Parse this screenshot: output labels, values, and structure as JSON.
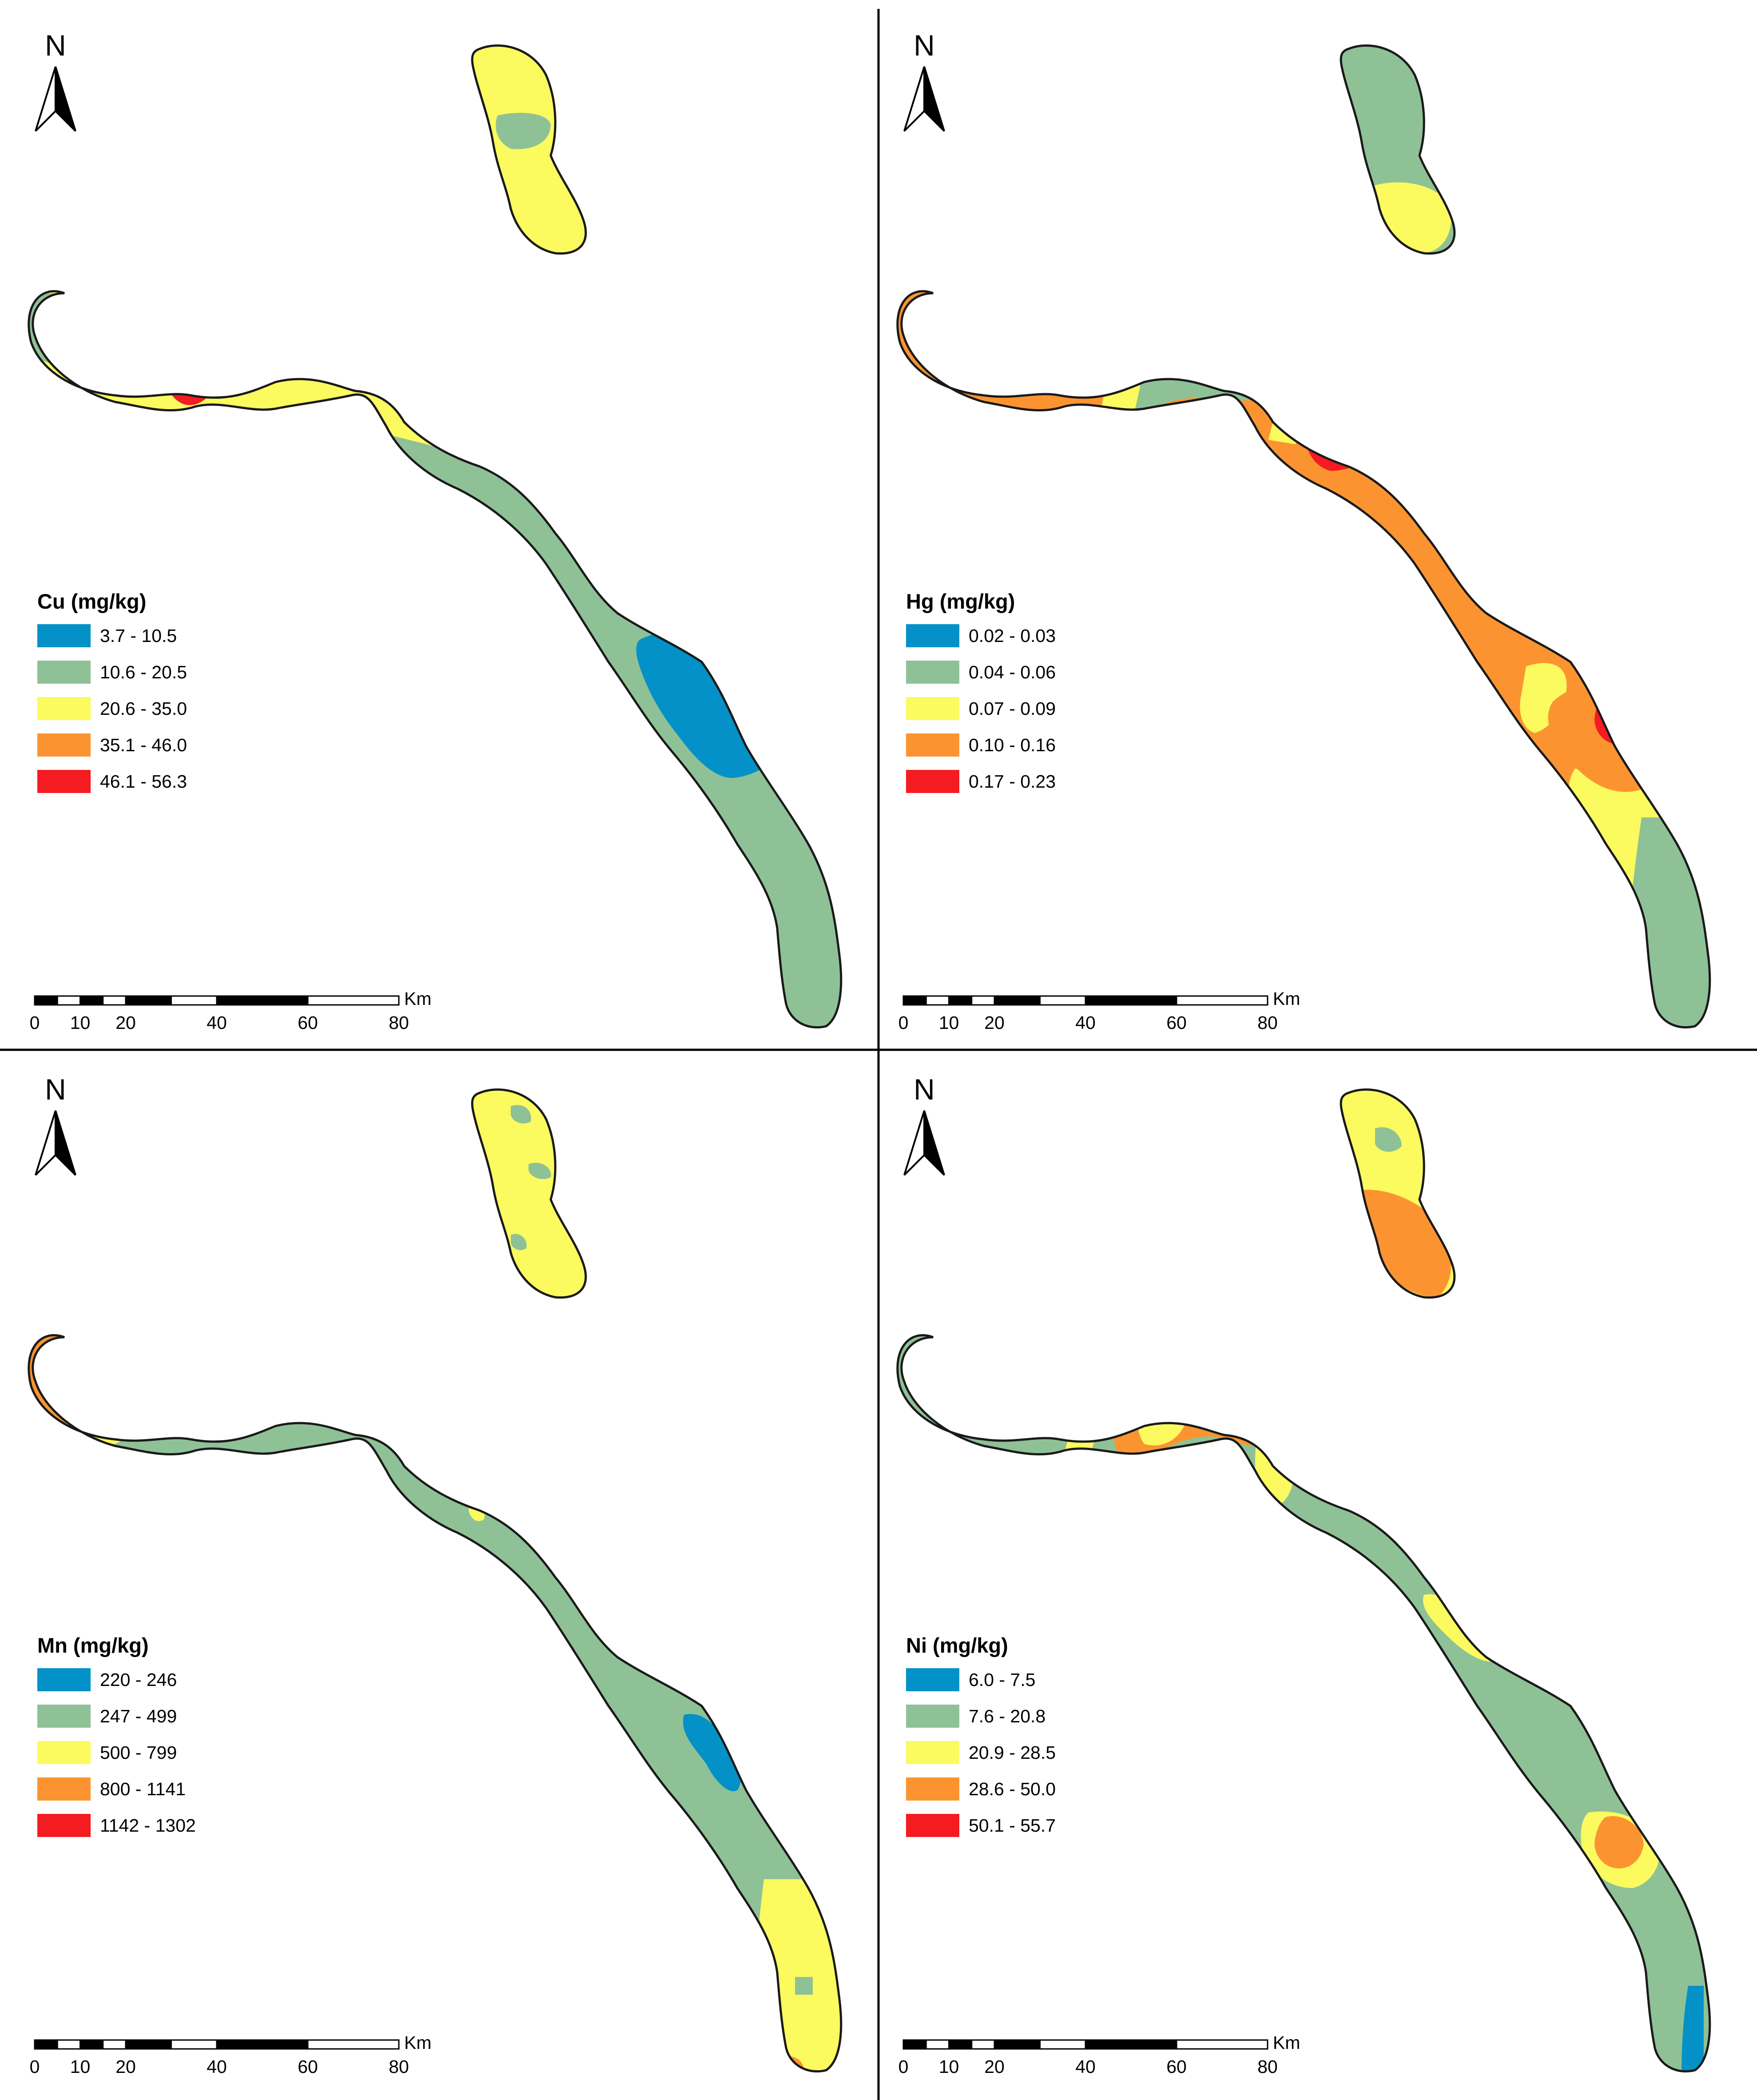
{
  "colors": {
    "blue": "#0391c7",
    "green": "#8fc197",
    "yellow": "#fbfa5f",
    "orange": "#fb9430",
    "red": "#f41c21",
    "outline": "#1a1a1a"
  },
  "north_label": "N",
  "scale_bar": {
    "unit": "Km",
    "ticks": [
      "0",
      "10",
      "20",
      "40",
      "60",
      "80"
    ]
  },
  "panels": [
    {
      "element": "Cu",
      "legend_title": "Cu (mg/kg)",
      "classes": [
        {
          "range": "3.7 - 10.5",
          "color": "blue"
        },
        {
          "range": "10.6 - 20.5",
          "color": "green"
        },
        {
          "range": "20.6 - 35.0",
          "color": "yellow"
        },
        {
          "range": "35.1 - 46.0",
          "color": "orange"
        },
        {
          "range": "46.1 - 56.3",
          "color": "red"
        }
      ]
    },
    {
      "element": "Hg",
      "legend_title": "Hg (mg/kg)",
      "classes": [
        {
          "range": "0.02 - 0.03",
          "color": "blue"
        },
        {
          "range": "0.04 - 0.06",
          "color": "green"
        },
        {
          "range": "0.07 - 0.09",
          "color": "yellow"
        },
        {
          "range": "0.10 - 0.16",
          "color": "orange"
        },
        {
          "range": "0.17 - 0.23",
          "color": "red"
        }
      ]
    },
    {
      "element": "Mn",
      "legend_title": "Mn (mg/kg)",
      "classes": [
        {
          "range": "220 - 246",
          "color": "blue"
        },
        {
          "range": "247 - 499",
          "color": "green"
        },
        {
          "range": "500 - 799",
          "color": "yellow"
        },
        {
          "range": "800 - 1141",
          "color": "orange"
        },
        {
          "range": "1142 - 1302",
          "color": "red"
        }
      ]
    },
    {
      "element": "Ni",
      "legend_title": "Ni (mg/kg)",
      "classes": [
        {
          "range": "6.0 - 7.5",
          "color": "blue"
        },
        {
          "range": "7.6 - 20.8",
          "color": "green"
        },
        {
          "range": "20.9 - 28.5",
          "color": "yellow"
        },
        {
          "range": "28.6 - 50.0",
          "color": "orange"
        },
        {
          "range": "50.1 - 55.7",
          "color": "red"
        }
      ]
    }
  ]
}
